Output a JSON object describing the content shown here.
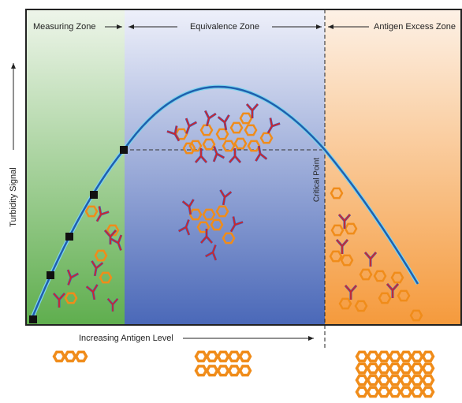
{
  "zones": [
    {
      "label": "Measuring Zone"
    },
    {
      "label": "Equivalence Zone"
    },
    {
      "label": "Antigen Excess Zone"
    }
  ],
  "y_axis_label": "Turbidity Signal",
  "x_axis_label": "Increasing Antigen Level",
  "critical_point_label": "Critical Point"
}
